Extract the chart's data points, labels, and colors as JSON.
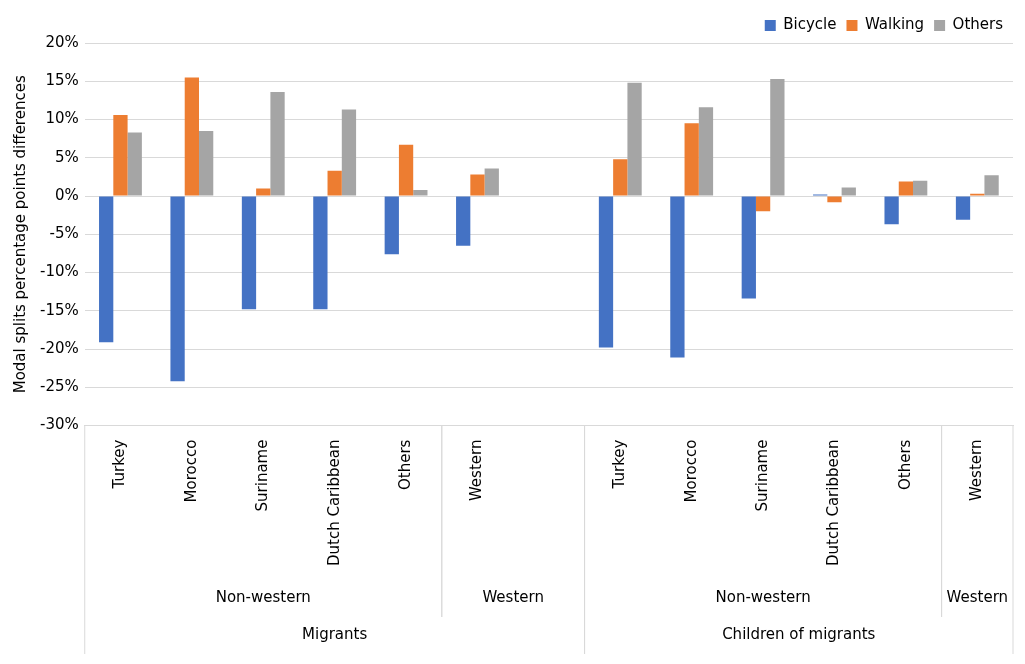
{
  "chart_data": {
    "type": "bar",
    "ylabel": "Modal splits percentage points differences",
    "categories": [
      "Turkey",
      "Morocco",
      "Suriname",
      "Dutch Caribbean",
      "Others",
      "Western",
      null,
      "Turkey",
      "Morocco",
      "Suriname",
      "Dutch Caribbean",
      "Others",
      "Western"
    ],
    "series": [
      {
        "name": "Bicycle",
        "color": "#4472c4",
        "values": [
          -19.1,
          -24.2,
          -14.8,
          -14.8,
          -7.6,
          -6.5,
          null,
          -19.8,
          -21.1,
          -13.4,
          0.2,
          -3.7,
          -3.1
        ]
      },
      {
        "name": "Walking",
        "color": "#ed7d31",
        "values": [
          10.6,
          15.5,
          1.0,
          3.3,
          6.7,
          2.8,
          null,
          4.8,
          9.5,
          -2.0,
          -0.8,
          1.9,
          0.3
        ]
      },
      {
        "name": "Others",
        "color": "#a5a5a5",
        "values": [
          8.3,
          8.5,
          13.6,
          11.3,
          0.8,
          3.6,
          null,
          14.8,
          11.6,
          15.3,
          1.1,
          2.0,
          2.7
        ]
      }
    ],
    "ylim": [
      -30,
      20
    ],
    "yticks": [
      {
        "value": -30,
        "label": "-30%"
      },
      {
        "value": -25,
        "label": "-25%"
      },
      {
        "value": -20,
        "label": "-20%"
      },
      {
        "value": -15,
        "label": "-15%"
      },
      {
        "value": -10,
        "label": "-10%"
      },
      {
        "value": -5,
        "label": "-5%"
      },
      {
        "value": 0,
        "label": "0%"
      },
      {
        "value": 5,
        "label": "5%"
      },
      {
        "value": 10,
        "label": "10%"
      },
      {
        "value": 15,
        "label": "15%"
      },
      {
        "value": 20,
        "label": "20%"
      }
    ],
    "grid": "y",
    "legend": "top right",
    "annotations": [
      "Non-western",
      "Western",
      "Non-western",
      "Western",
      "Migrants",
      "Children of migrants"
    ]
  }
}
